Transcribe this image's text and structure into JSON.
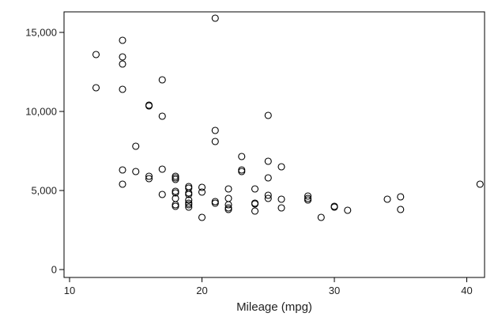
{
  "chart_data": {
    "type": "scatter",
    "xlabel": "Mileage (mpg)",
    "ylabel": "",
    "xlim": [
      10,
      41
    ],
    "ylim": [
      0,
      16000
    ],
    "x_ticks": [
      10,
      20,
      30,
      40
    ],
    "y_ticks": [
      0,
      5000,
      10000,
      15000
    ],
    "x_tick_labels": [
      "10",
      "20",
      "30",
      "40"
    ],
    "y_tick_labels": [
      "0",
      "5,000",
      "10,000",
      "15,000"
    ],
    "grid": false,
    "marker": "hollow-circle",
    "marker_color": "#000000",
    "points": [
      {
        "x": 12,
        "y": 13600
      },
      {
        "x": 12,
        "y": 11500
      },
      {
        "x": 14,
        "y": 14500
      },
      {
        "x": 14,
        "y": 13450
      },
      {
        "x": 14,
        "y": 13000
      },
      {
        "x": 14,
        "y": 11400
      },
      {
        "x": 14,
        "y": 6300
      },
      {
        "x": 14,
        "y": 5400
      },
      {
        "x": 15,
        "y": 7800
      },
      {
        "x": 15,
        "y": 6200
      },
      {
        "x": 16,
        "y": 10400
      },
      {
        "x": 16,
        "y": 10350
      },
      {
        "x": 16,
        "y": 5900
      },
      {
        "x": 16,
        "y": 5750
      },
      {
        "x": 17,
        "y": 12000
      },
      {
        "x": 17,
        "y": 9700
      },
      {
        "x": 17,
        "y": 6350
      },
      {
        "x": 17,
        "y": 4750
      },
      {
        "x": 18,
        "y": 5900
      },
      {
        "x": 18,
        "y": 5800
      },
      {
        "x": 18,
        "y": 5700
      },
      {
        "x": 18,
        "y": 4950
      },
      {
        "x": 18,
        "y": 4850
      },
      {
        "x": 18,
        "y": 4500
      },
      {
        "x": 18,
        "y": 4100
      },
      {
        "x": 18,
        "y": 4000
      },
      {
        "x": 19,
        "y": 5250
      },
      {
        "x": 19,
        "y": 5150
      },
      {
        "x": 19,
        "y": 4850
      },
      {
        "x": 19,
        "y": 4750
      },
      {
        "x": 19,
        "y": 4400
      },
      {
        "x": 19,
        "y": 4200
      },
      {
        "x": 19,
        "y": 4100
      },
      {
        "x": 19,
        "y": 3950
      },
      {
        "x": 20,
        "y": 5200
      },
      {
        "x": 20,
        "y": 4900
      },
      {
        "x": 20,
        "y": 3300
      },
      {
        "x": 21,
        "y": 15900
      },
      {
        "x": 21,
        "y": 8800
      },
      {
        "x": 21,
        "y": 8100
      },
      {
        "x": 21,
        "y": 4300
      },
      {
        "x": 21,
        "y": 4200
      },
      {
        "x": 22,
        "y": 5100
      },
      {
        "x": 22,
        "y": 4500
      },
      {
        "x": 22,
        "y": 4100
      },
      {
        "x": 22,
        "y": 3900
      },
      {
        "x": 22,
        "y": 3800
      },
      {
        "x": 23,
        "y": 7150
      },
      {
        "x": 23,
        "y": 6300
      },
      {
        "x": 23,
        "y": 6200
      },
      {
        "x": 24,
        "y": 5100
      },
      {
        "x": 24,
        "y": 4200
      },
      {
        "x": 24,
        "y": 4150
      },
      {
        "x": 24,
        "y": 3700
      },
      {
        "x": 25,
        "y": 9750
      },
      {
        "x": 25,
        "y": 6850
      },
      {
        "x": 25,
        "y": 5800
      },
      {
        "x": 25,
        "y": 4700
      },
      {
        "x": 25,
        "y": 4500
      },
      {
        "x": 26,
        "y": 6500
      },
      {
        "x": 26,
        "y": 4450
      },
      {
        "x": 26,
        "y": 3900
      },
      {
        "x": 28,
        "y": 4650
      },
      {
        "x": 28,
        "y": 4500
      },
      {
        "x": 28,
        "y": 4400
      },
      {
        "x": 29,
        "y": 3300
      },
      {
        "x": 30,
        "y": 4000
      },
      {
        "x": 30,
        "y": 3950
      },
      {
        "x": 31,
        "y": 3750
      },
      {
        "x": 34,
        "y": 4450
      },
      {
        "x": 35,
        "y": 4600
      },
      {
        "x": 35,
        "y": 3800
      },
      {
        "x": 41,
        "y": 5400
      }
    ]
  }
}
